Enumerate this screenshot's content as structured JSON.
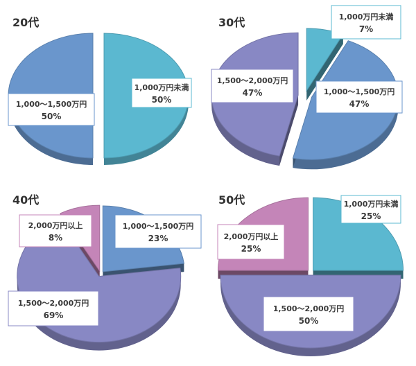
{
  "chart_data": [
    {
      "type": "pie",
      "title": "20代",
      "series": [
        {
          "name": "1,000万円未満",
          "value": 50,
          "label": "50%"
        },
        {
          "name": "1,000～1,500万円",
          "value": 50,
          "label": "50%"
        }
      ]
    },
    {
      "type": "pie",
      "title": "30代",
      "series": [
        {
          "name": "1,000万円未満",
          "value": 7,
          "label": "7%"
        },
        {
          "name": "1,000～1,500万円",
          "value": 47,
          "label": "47%"
        },
        {
          "name": "1,500～2,000万円",
          "value": 47,
          "label": "47%"
        }
      ]
    },
    {
      "type": "pie",
      "title": "40代",
      "series": [
        {
          "name": "1,000～1,500万円",
          "value": 23,
          "label": "23%"
        },
        {
          "name": "1,500～2,000万円",
          "value": 69,
          "label": "69%"
        },
        {
          "name": "2,000万円以上",
          "value": 8,
          "label": "8%"
        }
      ]
    },
    {
      "type": "pie",
      "title": "50代",
      "series": [
        {
          "name": "1,000万円未満",
          "value": 25,
          "label": "25%"
        },
        {
          "name": "1,500～2,000万円",
          "value": 50,
          "label": "50%"
        },
        {
          "name": "2,000万円以上",
          "value": 25,
          "label": "25%"
        }
      ]
    }
  ],
  "colors": {
    "1,000万円未満": "#5bb8d0",
    "1,000～1,500万円": "#6a96cc",
    "1,500～2,000万円": "#8888c4",
    "2,000万円以上": "#c485b8"
  }
}
